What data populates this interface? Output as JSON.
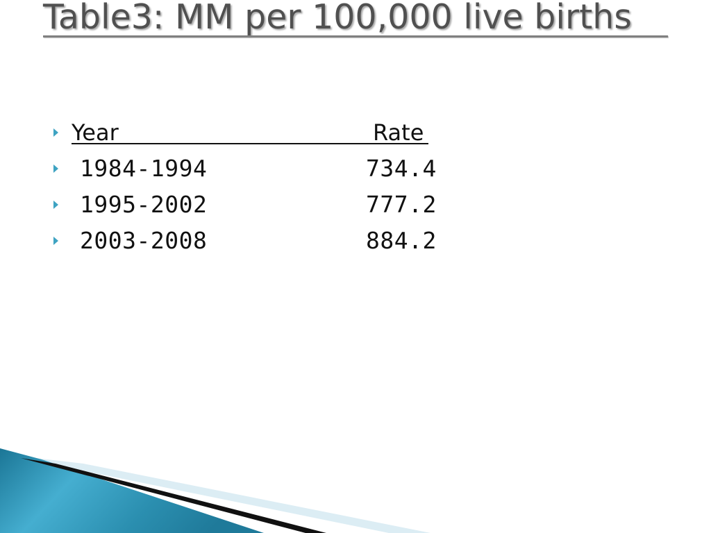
{
  "slide": {
    "title": "Table3: MM per 100,000 live births"
  },
  "table": {
    "header": {
      "year_label": "Year",
      "rate_label": "Rate"
    },
    "rows": [
      {
        "year": "1984-1994",
        "rate": "734.4"
      },
      {
        "year": "1995-2002",
        "rate": "777.2"
      },
      {
        "year": "2003-2008",
        "rate": "884.2"
      }
    ]
  },
  "theme": {
    "bullet_color": "#3ea3c2",
    "title_color": "#505050",
    "accent_teal": "#2b8fb0",
    "accent_light": "#dcedf4",
    "bullet_icon": "triangle-right-bullet-icon"
  }
}
